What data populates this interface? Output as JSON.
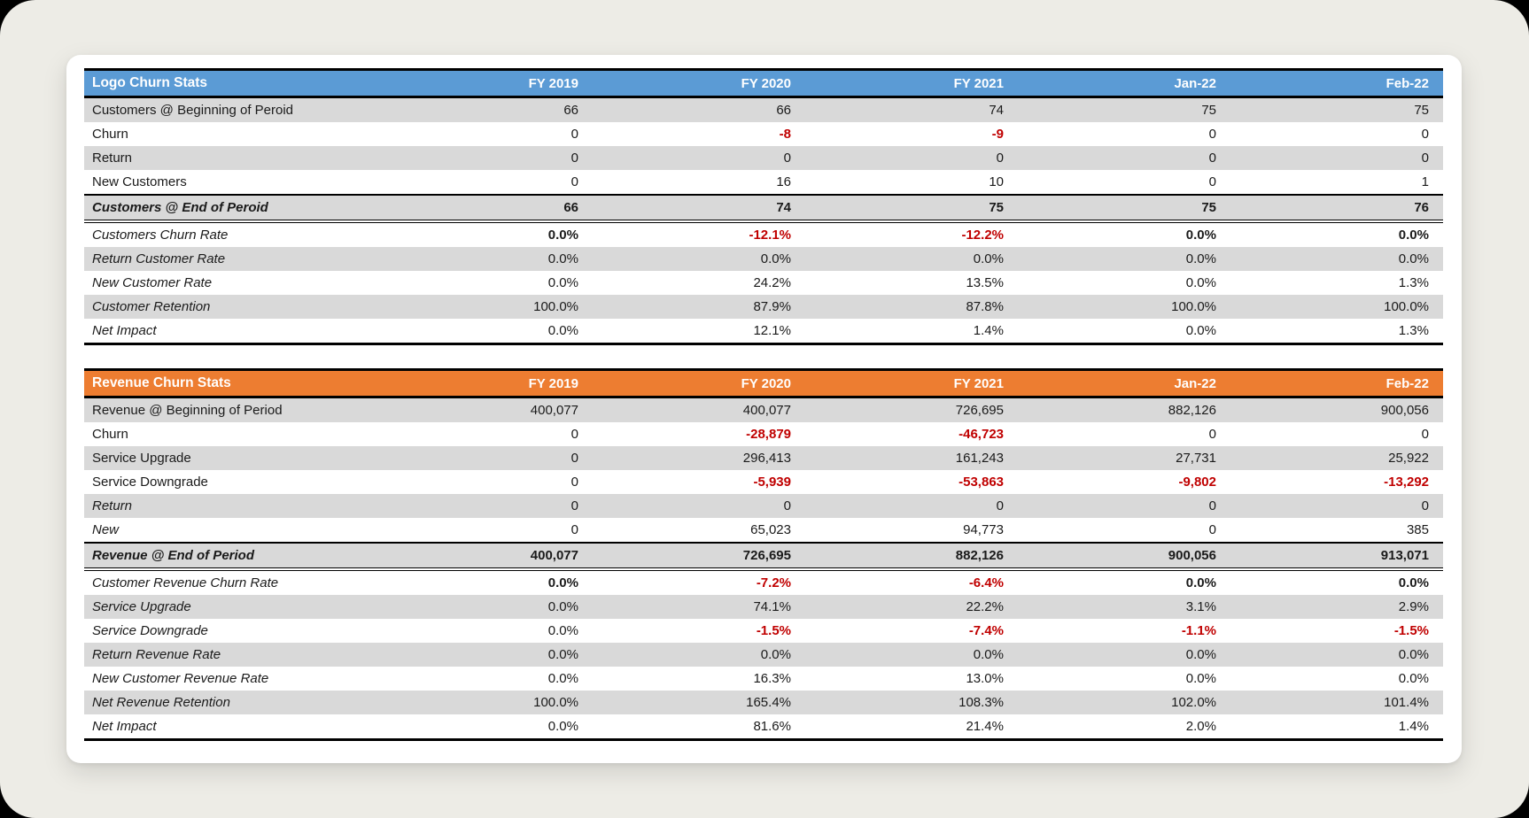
{
  "page": {
    "background_color": "#EDECE6",
    "card_background": "#FFFFFF"
  },
  "colors": {
    "blue_header": "#5B9BD5",
    "orange_header": "#ED7D31",
    "stripe_gray": "#D9D9D9",
    "negative_red": "#C00000",
    "header_text": "#FFFFFF",
    "body_text": "#1A1A1A"
  },
  "tables": [
    {
      "title": "Logo Churn Stats",
      "header_color": "#5B9BD5",
      "columns": [
        "FY 2019",
        "FY 2020",
        "FY 2021",
        "Jan-22",
        "Feb-22"
      ],
      "rows": [
        {
          "label": "Customers @ Beginning of Peroid",
          "values": [
            "66",
            "66",
            "74",
            "75",
            "75"
          ]
        },
        {
          "label": "Churn",
          "values": [
            "0",
            "-8",
            "-9",
            "0",
            "0"
          ]
        },
        {
          "label": "Return",
          "values": [
            "0",
            "0",
            "0",
            "0",
            "0"
          ]
        },
        {
          "label": "New Customers",
          "values": [
            "0",
            "16",
            "10",
            "0",
            "1"
          ]
        },
        {
          "label": "Customers @ End of Peroid",
          "values": [
            "66",
            "74",
            "75",
            "75",
            "76"
          ],
          "label_style": "bold-italic",
          "bold_values": true,
          "total": true
        },
        {
          "label": "Customers Churn Rate",
          "values": [
            "0.0%",
            "-12.1%",
            "-12.2%",
            "0.0%",
            "0.0%"
          ],
          "label_style": "italic",
          "bold_values": true
        },
        {
          "label": "Return Customer Rate",
          "values": [
            "0.0%",
            "0.0%",
            "0.0%",
            "0.0%",
            "0.0%"
          ],
          "label_style": "italic"
        },
        {
          "label": "New Customer Rate",
          "values": [
            "0.0%",
            "24.2%",
            "13.5%",
            "0.0%",
            "1.3%"
          ],
          "label_style": "italic"
        },
        {
          "label": "Customer Retention",
          "values": [
            "100.0%",
            "87.9%",
            "87.8%",
            "100.0%",
            "100.0%"
          ],
          "label_style": "italic"
        },
        {
          "label": "Net Impact",
          "values": [
            "0.0%",
            "12.1%",
            "1.4%",
            "0.0%",
            "1.3%"
          ],
          "label_style": "italic"
        }
      ]
    },
    {
      "title": "Revenue Churn Stats",
      "header_color": "#ED7D31",
      "columns": [
        "FY 2019",
        "FY 2020",
        "FY 2021",
        "Jan-22",
        "Feb-22"
      ],
      "rows": [
        {
          "label": "Revenue @ Beginning of Period",
          "values": [
            "400,077",
            "400,077",
            "726,695",
            "882,126",
            "900,056"
          ]
        },
        {
          "label": "Churn",
          "values": [
            "0",
            "-28,879",
            "-46,723",
            "0",
            "0"
          ]
        },
        {
          "label": "Service Upgrade",
          "values": [
            "0",
            "296,413",
            "161,243",
            "27,731",
            "25,922"
          ]
        },
        {
          "label": "Service Downgrade",
          "values": [
            "0",
            "-5,939",
            "-53,863",
            "-9,802",
            "-13,292"
          ]
        },
        {
          "label": "Return",
          "values": [
            "0",
            "0",
            "0",
            "0",
            "0"
          ],
          "label_style": "italic"
        },
        {
          "label": "New",
          "values": [
            "0",
            "65,023",
            "94,773",
            "0",
            "385"
          ],
          "label_style": "italic"
        },
        {
          "label": "Revenue @ End of Period",
          "values": [
            "400,077",
            "726,695",
            "882,126",
            "900,056",
            "913,071"
          ],
          "label_style": "bold-italic",
          "bold_values": true,
          "total": true
        },
        {
          "label": "Customer Revenue Churn Rate",
          "values": [
            "0.0%",
            "-7.2%",
            "-6.4%",
            "0.0%",
            "0.0%"
          ],
          "label_style": "italic",
          "bold_values": true
        },
        {
          "label": "Service Upgrade",
          "values": [
            "0.0%",
            "74.1%",
            "22.2%",
            "3.1%",
            "2.9%"
          ],
          "label_style": "italic"
        },
        {
          "label": "Service Downgrade",
          "values": [
            "0.0%",
            "-1.5%",
            "-7.4%",
            "-1.1%",
            "-1.5%"
          ],
          "label_style": "italic"
        },
        {
          "label": "Return Revenue Rate",
          "values": [
            "0.0%",
            "0.0%",
            "0.0%",
            "0.0%",
            "0.0%"
          ],
          "label_style": "italic"
        },
        {
          "label": "New Customer Revenue Rate",
          "values": [
            "0.0%",
            "16.3%",
            "13.0%",
            "0.0%",
            "0.0%"
          ],
          "label_style": "italic"
        },
        {
          "label": "Net Revenue Retention",
          "values": [
            "100.0%",
            "165.4%",
            "108.3%",
            "102.0%",
            "101.4%"
          ],
          "label_style": "italic"
        },
        {
          "label": "Net Impact",
          "values": [
            "0.0%",
            "81.6%",
            "21.4%",
            "2.0%",
            "1.4%"
          ],
          "label_style": "italic"
        }
      ]
    }
  ]
}
